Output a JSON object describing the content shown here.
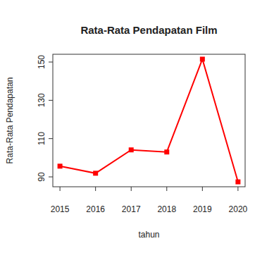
{
  "chart_data": {
    "type": "line",
    "title": "Rata-Rata Pendapatan Film",
    "x_label": "tahun",
    "y_label": "Rata-Rata Pendapatan",
    "x": [
      2015,
      2016,
      2017,
      2018,
      2019,
      2020
    ],
    "values": [
      95.6,
      91.9,
      104.1,
      103.0,
      151.5,
      87.4
    ],
    "color": "#ff0000",
    "marker": "square",
    "line_style": "solid",
    "xlim": [
      2014.8,
      2020.2
    ],
    "xticks": [
      2015,
      2016,
      2017,
      2018,
      2019,
      2020
    ],
    "ylim": [
      84.84,
      154.06
    ],
    "yticks": [
      90,
      110,
      130,
      150
    ],
    "grid": false
  }
}
